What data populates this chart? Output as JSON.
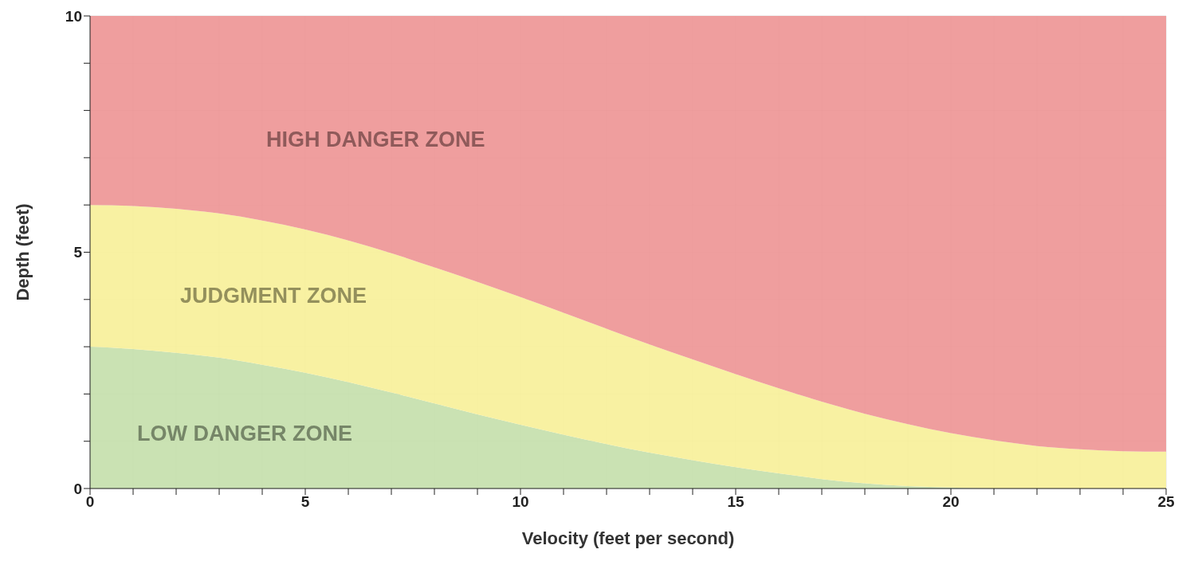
{
  "chart_data": {
    "type": "area",
    "stacked": true,
    "xlabel": "Velocity (feet per second)",
    "ylabel": "Depth (feet)",
    "x": [
      0,
      1,
      2,
      3,
      4,
      5,
      6,
      7,
      8,
      9,
      10,
      11,
      12,
      13,
      14,
      15,
      16,
      17,
      18,
      19,
      20,
      21,
      22,
      23,
      24,
      25
    ],
    "series": [
      {
        "name": "LOW DANGER ZONE",
        "color": "#c5dfad",
        "values": [
          3.0,
          2.95,
          2.87,
          2.77,
          2.62,
          2.45,
          2.25,
          2.03,
          1.8,
          1.57,
          1.35,
          1.14,
          0.94,
          0.76,
          0.6,
          0.45,
          0.32,
          0.2,
          0.11,
          0.05,
          0.02,
          0,
          0,
          0,
          0,
          0
        ]
      },
      {
        "name": "JUDGMENT ZONE",
        "color": "#f7f09a",
        "values": [
          3.0,
          3.03,
          3.05,
          3.05,
          3.05,
          3.03,
          3.0,
          2.95,
          2.88,
          2.8,
          2.7,
          2.58,
          2.44,
          2.29,
          2.13,
          1.97,
          1.8,
          1.64,
          1.47,
          1.31,
          1.15,
          1.02,
          0.9,
          0.83,
          0.79,
          0.78
        ]
      },
      {
        "name": "HIGH DANGER ZONE",
        "color": "#ee9696",
        "values": [
          4.0,
          4.02,
          4.08,
          4.18,
          4.33,
          4.52,
          4.75,
          5.02,
          5.32,
          5.63,
          5.95,
          6.28,
          6.62,
          6.95,
          7.27,
          7.58,
          7.88,
          8.16,
          8.42,
          8.64,
          8.83,
          8.98,
          9.1,
          9.17,
          9.21,
          9.22
        ]
      }
    ],
    "xlim": [
      0,
      25
    ],
    "xticks": [
      0,
      {
        "value": 1,
        "label": null
      },
      {
        "value": 2,
        "label": null
      },
      {
        "value": 3,
        "label": null
      },
      {
        "value": 4,
        "label": null
      },
      5,
      {
        "value": 6,
        "label": null
      },
      {
        "value": 7,
        "label": null
      },
      {
        "value": 8,
        "label": null
      },
      {
        "value": 9,
        "label": null
      },
      10,
      {
        "value": 11,
        "label": null
      },
      {
        "value": 12,
        "label": null
      },
      {
        "value": 13,
        "label": null
      },
      {
        "value": 14,
        "label": null
      },
      15,
      {
        "value": 16,
        "label": null
      },
      {
        "value": 17,
        "label": null
      },
      {
        "value": 18,
        "label": null
      },
      {
        "value": 19,
        "label": null
      },
      20,
      {
        "value": 21,
        "label": null
      },
      {
        "value": 22,
        "label": null
      },
      {
        "value": 23,
        "label": null
      },
      {
        "value": 24,
        "label": null
      },
      25
    ],
    "ylim": [
      0,
      10
    ],
    "yticks": [
      0,
      {
        "value": 1,
        "label": null
      },
      {
        "value": 2,
        "label": null
      },
      {
        "value": 3,
        "label": null
      },
      {
        "value": 4,
        "label": null
      },
      5,
      {
        "value": 6,
        "label": null
      },
      {
        "value": 7,
        "label": null
      },
      {
        "value": 8,
        "label": null
      },
      {
        "value": 9,
        "label": null
      },
      10
    ],
    "grid": true
  }
}
